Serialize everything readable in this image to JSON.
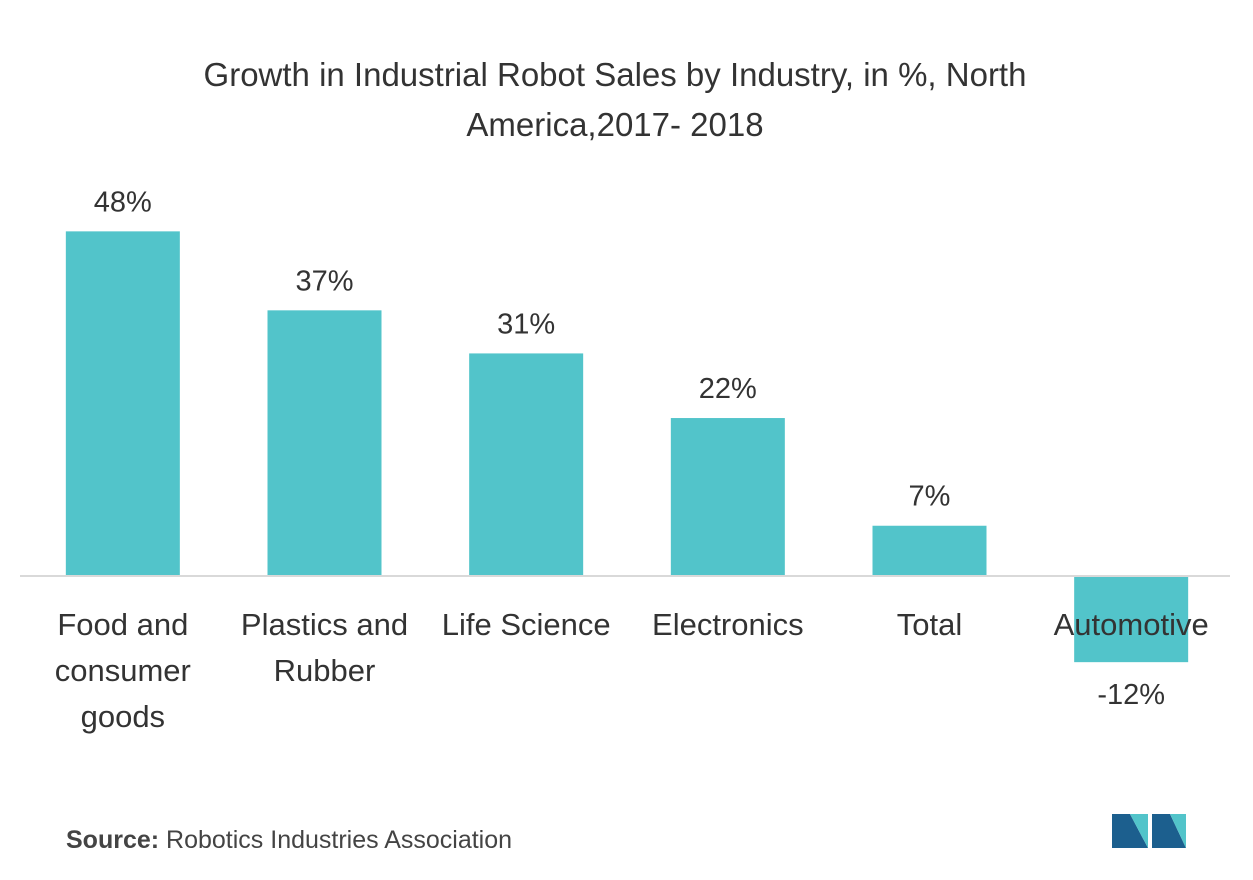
{
  "chart_data": {
    "type": "bar",
    "title_lines": [
      "Growth in Industrial Robot Sales by Industry, in %, North",
      "America,2017- 2018"
    ],
    "categories": [
      [
        "Food and",
        "consumer",
        "goods"
      ],
      [
        "Plastics and",
        "Rubber"
      ],
      [
        "Life Science"
      ],
      [
        "Electronics"
      ],
      [
        "Total"
      ],
      [
        "Automotive"
      ]
    ],
    "values": [
      48,
      37,
      31,
      22,
      7,
      -12
    ],
    "value_labels": [
      "48%",
      "37%",
      "31%",
      "22%",
      "7%",
      "-12%"
    ],
    "ylim": [
      -12,
      48
    ],
    "bar_color": "#52c4ca",
    "grid": false,
    "legend": false
  },
  "source": {
    "label": "Source:",
    "text": " Robotics Industries Association"
  },
  "logo": {
    "colors": [
      "#1c5f8e",
      "#52c4ca"
    ]
  }
}
